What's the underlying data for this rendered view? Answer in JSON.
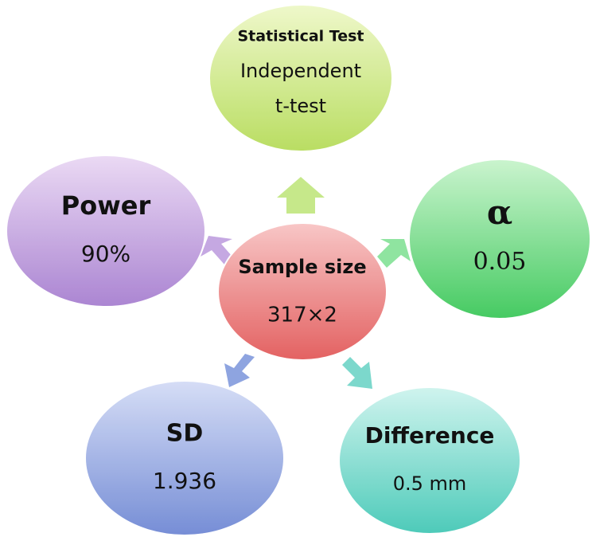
{
  "nodes": [
    {
      "title": "Sample size",
      "lines": [
        "317×2"
      ]
    },
    {
      "title": "Statistical Test",
      "lines": [
        "Independent",
        "t-test"
      ]
    },
    {
      "title": "Power",
      "lines": [
        "90%"
      ]
    },
    {
      "title": "α",
      "lines": [
        "0.05"
      ]
    },
    {
      "title": "SD",
      "lines": [
        "1.936"
      ]
    },
    {
      "title": "Difference",
      "lines": [
        "0.5 mm"
      ]
    }
  ]
}
